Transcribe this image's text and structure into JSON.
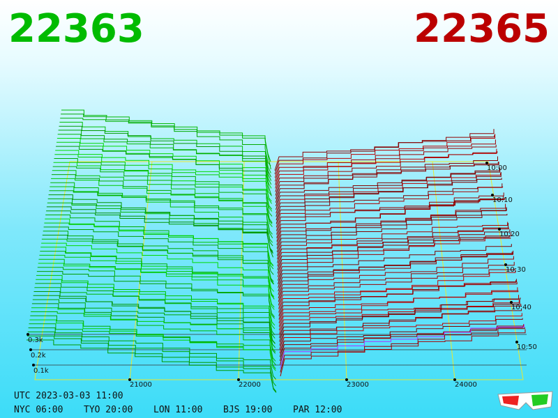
{
  "header": {
    "bid": "22363",
    "ask": "22365"
  },
  "axes": {
    "price_ticks": [
      "21000",
      "22000",
      "23000",
      "24000"
    ],
    "volume_ticks": [
      "0.3k",
      "0.2k",
      "0.1k"
    ],
    "time_ticks": [
      "10:00",
      "10:10",
      "10:20",
      "10:30",
      "10:40",
      "10:50"
    ]
  },
  "footer": {
    "utc": "UTC 2023-03-03 11:00",
    "clocks": [
      "NYC 06:00",
      "TYO 20:00",
      "LON 11:00",
      "BJS 19:00",
      "PAR 12:00"
    ]
  }
}
